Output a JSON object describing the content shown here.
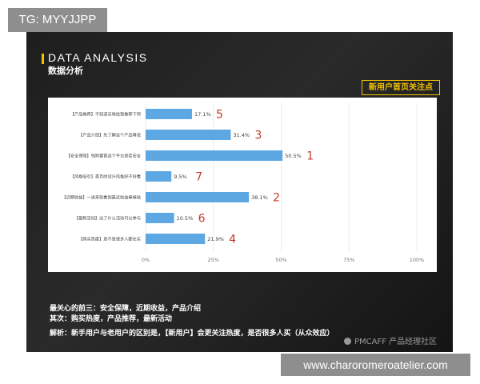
{
  "watermark_tag": "TG: MYYJJPP",
  "header": {
    "title_en": "DATA ANALYSIS",
    "title_cn": "数据分析",
    "focus_label": "新用户首页关注点"
  },
  "colors": {
    "bar": "#5da7e3",
    "rank": "#c0392b",
    "accent": "#f2c200"
  },
  "chart_data": {
    "type": "bar",
    "orientation": "horizontal",
    "title": "新用户首页关注点",
    "categories": [
      "【产品推荐】不知道买啥给我推荐下呗",
      "【产品介绍】先了解这个产品再说",
      "【安全保障】钱财要首这个平台是否安全",
      "【风格吸引】首页的设计风格好不好看",
      "【近期收益】一进来就看到最近收益棒棒哒",
      "【最新活动】出了什么活动可以参与",
      "【购买热度】是不是很多人都在买"
    ],
    "values": [
      17.1,
      31.4,
      50.5,
      9.5,
      38.1,
      10.5,
      21.9
    ],
    "value_labels": [
      "17.1%",
      "31.4%",
      "50.5%",
      "9.5%",
      "38.1%",
      "10.5%",
      "21.9%"
    ],
    "ranks": [
      "5",
      "3",
      "1",
      "7",
      "2",
      "6",
      "4"
    ],
    "xlim": [
      0,
      100
    ],
    "xticks": [
      "0%",
      "25%",
      "50%",
      "75%",
      "100%"
    ],
    "xlabel": "",
    "ylabel": "",
    "grid": true
  },
  "summary": {
    "line1": "最关心的前三：安全保障，近期收益，产品介绍",
    "line2": "其次：购买热度，产品推荐，最新活动",
    "line3": "解析：新手用户与老用户的区别是，【新用户】会更关注热度，是否很多人买（从众效应）"
  },
  "brand_watermark": "PMCAFF 产品经理社区",
  "url_tag": "www.charoromeroatelier.com"
}
